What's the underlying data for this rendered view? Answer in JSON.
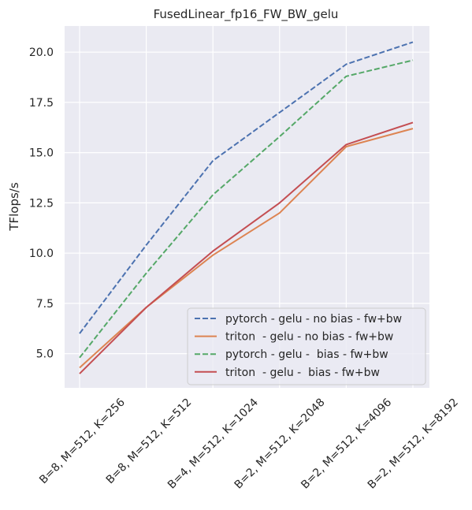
{
  "chart_data": {
    "type": "line",
    "title": "FusedLinear_fp16_FW_BW_gelu",
    "xlabel": "",
    "ylabel": "TFlops/s",
    "categories": [
      "B=8, M=512, K=256",
      "B=8, M=512, K=512",
      "B=4, M=512, K=1024",
      "B=2, M=512, K=2048",
      "B=2, M=512, K=4096",
      "B=2, M=512, K=8192"
    ],
    "ylim": [
      3.3,
      21.3
    ],
    "yticks": [
      5.0,
      7.5,
      10.0,
      12.5,
      15.0,
      17.5,
      20.0
    ],
    "ytick_labels": [
      "5.0",
      "7.5",
      "10.0",
      "12.5",
      "15.0",
      "17.5",
      "20.0"
    ],
    "grid": true,
    "legend_position": "lower-right",
    "series": [
      {
        "name": "pytorch - gelu - no bias - fw+bw",
        "color": "#4c72b0",
        "dash": "dashed",
        "values": [
          6.0,
          10.4,
          14.6,
          17.0,
          19.4,
          20.5
        ]
      },
      {
        "name": "triton  - gelu - no bias - fw+bw",
        "color": "#dd8452",
        "dash": "solid",
        "values": [
          4.3,
          7.3,
          9.9,
          12.0,
          15.3,
          16.2
        ]
      },
      {
        "name": "pytorch - gelu -  bias - fw+bw",
        "color": "#55a868",
        "dash": "dashed",
        "values": [
          4.8,
          9.0,
          12.9,
          15.8,
          18.8,
          19.6
        ]
      },
      {
        "name": "triton  - gelu -  bias - fw+bw",
        "color": "#c44e52",
        "dash": "solid",
        "values": [
          4.0,
          7.3,
          10.1,
          12.5,
          15.4,
          16.5
        ]
      }
    ]
  }
}
